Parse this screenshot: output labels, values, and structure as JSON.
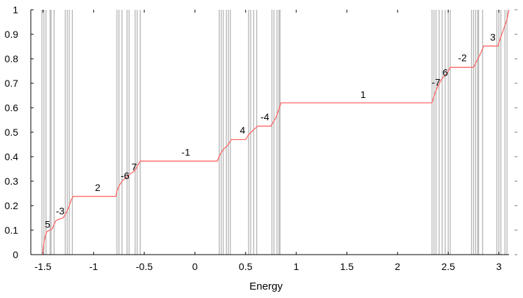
{
  "chart_data": {
    "type": "line",
    "xlabel": "Energy",
    "ylabel": "",
    "title": "",
    "xlim": [
      -1.62,
      3.1
    ],
    "ylim": [
      0,
      1
    ],
    "x_ticks": [
      {
        "value": -1.5,
        "label": "-1.5"
      },
      {
        "value": -1,
        "label": "-1"
      },
      {
        "value": -0.5,
        "label": "-0.5"
      },
      {
        "value": 0,
        "label": "0"
      },
      {
        "value": 0.5,
        "label": "0.5"
      },
      {
        "value": 1,
        "label": "1"
      },
      {
        "value": 1.5,
        "label": "1.5"
      },
      {
        "value": 2,
        "label": "2"
      },
      {
        "value": 2.5,
        "label": "2.5"
      },
      {
        "value": 3,
        "label": "3"
      }
    ],
    "y_ticks": [
      {
        "value": 0,
        "label": "0"
      },
      {
        "value": 0.1,
        "label": "0.1"
      },
      {
        "value": 0.2,
        "label": "0.2"
      },
      {
        "value": 0.3,
        "label": "0.3"
      },
      {
        "value": 0.4,
        "label": "0.4"
      },
      {
        "value": 0.5,
        "label": "0.5"
      },
      {
        "value": 0.6,
        "label": "0.6"
      },
      {
        "value": 0.7,
        "label": "0.7"
      },
      {
        "value": 0.8,
        "label": "0.8"
      },
      {
        "value": 0.9,
        "label": "0.9"
      },
      {
        "value": 1,
        "label": "1"
      }
    ],
    "grid": false,
    "line_color": "#ff6666",
    "eigenvalue_line_color": "#b4b4b4",
    "series": [
      {
        "values_xy": [
          [
            -1.505,
            0.0
          ],
          [
            -1.5,
            0.02
          ],
          [
            -1.49,
            0.05
          ],
          [
            -1.475,
            0.08
          ],
          [
            -1.46,
            0.095
          ],
          [
            -1.43,
            0.1
          ],
          [
            -1.41,
            0.105
          ],
          [
            -1.39,
            0.125
          ],
          [
            -1.37,
            0.14
          ],
          [
            -1.34,
            0.145
          ],
          [
            -1.3,
            0.15
          ],
          [
            -1.28,
            0.165
          ],
          [
            -1.26,
            0.18
          ],
          [
            -1.24,
            0.2
          ],
          [
            -1.22,
            0.225
          ],
          [
            -1.2,
            0.238
          ],
          [
            -0.78,
            0.238
          ],
          [
            -0.77,
            0.26
          ],
          [
            -0.75,
            0.28
          ],
          [
            -0.72,
            0.3
          ],
          [
            -0.68,
            0.315
          ],
          [
            -0.64,
            0.33
          ],
          [
            -0.6,
            0.34
          ],
          [
            -0.57,
            0.36
          ],
          [
            -0.54,
            0.382
          ],
          [
            0.22,
            0.382
          ],
          [
            0.25,
            0.41
          ],
          [
            0.28,
            0.43
          ],
          [
            0.32,
            0.445
          ],
          [
            0.36,
            0.47
          ],
          [
            0.5,
            0.47
          ],
          [
            0.53,
            0.49
          ],
          [
            0.58,
            0.51
          ],
          [
            0.62,
            0.525
          ],
          [
            0.75,
            0.525
          ],
          [
            0.8,
            0.56
          ],
          [
            0.85,
            0.62
          ],
          [
            2.34,
            0.62
          ],
          [
            2.37,
            0.66
          ],
          [
            2.4,
            0.69
          ],
          [
            2.44,
            0.72
          ],
          [
            2.48,
            0.735
          ],
          [
            2.52,
            0.765
          ],
          [
            2.75,
            0.765
          ],
          [
            2.78,
            0.79
          ],
          [
            2.82,
            0.822
          ],
          [
            2.85,
            0.852
          ],
          [
            2.99,
            0.852
          ],
          [
            3.02,
            0.89
          ],
          [
            3.05,
            0.925
          ],
          [
            3.08,
            0.96
          ],
          [
            3.1,
            1.0
          ]
        ]
      }
    ],
    "eigenvalues": [
      -1.51,
      -1.49,
      -1.47,
      -1.43,
      -1.42,
      -1.39,
      -1.28,
      -1.26,
      -1.24,
      -1.21,
      -0.77,
      -0.75,
      -0.72,
      -0.67,
      -0.65,
      -0.59,
      -0.57,
      -0.54,
      0.24,
      0.26,
      0.28,
      0.31,
      0.33,
      0.35,
      0.53,
      0.55,
      0.58,
      0.61,
      0.76,
      0.78,
      0.81,
      0.83,
      0.84,
      2.34,
      2.36,
      2.38,
      2.41,
      2.44,
      2.47,
      2.5,
      2.52,
      2.73,
      2.75,
      2.77,
      2.79,
      2.8,
      2.84,
      2.98,
      3.0,
      3.02,
      3.06,
      3.08
    ],
    "annotations": [
      {
        "text": "5",
        "x": -1.455,
        "y": 0.11
      },
      {
        "text": "-3",
        "x": -1.33,
        "y": 0.165
      },
      {
        "text": "2",
        "x": -0.96,
        "y": 0.26
      },
      {
        "text": "-6",
        "x": -0.69,
        "y": 0.308
      },
      {
        "text": "7",
        "x": -0.6,
        "y": 0.345
      },
      {
        "text": "-1",
        "x": -0.09,
        "y": 0.405
      },
      {
        "text": "4",
        "x": 0.47,
        "y": 0.495
      },
      {
        "text": "-4",
        "x": 0.69,
        "y": 0.548
      },
      {
        "text": "1",
        "x": 1.66,
        "y": 0.64
      },
      {
        "text": "-7",
        "x": 2.38,
        "y": 0.69
      },
      {
        "text": "6",
        "x": 2.47,
        "y": 0.73
      },
      {
        "text": "-2",
        "x": 2.64,
        "y": 0.79
      },
      {
        "text": "3",
        "x": 2.94,
        "y": 0.875
      }
    ]
  }
}
